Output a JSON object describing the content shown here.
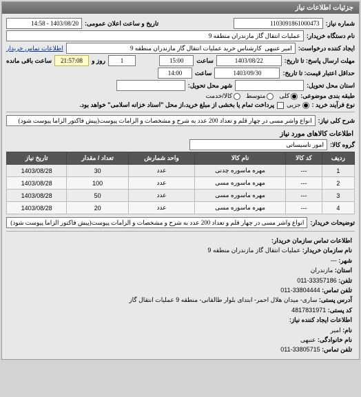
{
  "panel": {
    "title": "جزئیات اطلاعات نیاز"
  },
  "header": {
    "request_no_label": "شماره نیاز:",
    "request_no": "1103091861000473",
    "announce_label": "تاریخ و ساعت اعلان عمومی:",
    "announce_value": "1403/08/20 - 14:58",
    "buyer_label": "نام دستگاه خریدار:",
    "buyer": "عملیات انتقال گاز مازندران منطقه 9",
    "creator_label": "ایجاد کننده درخواست:",
    "creator": "امیر عنبهی  کارشناس خرید عملیات انتقال گاز مازندران منطقه 9",
    "contact_link": "اطلاعات تماس خریدار"
  },
  "deadlines": {
    "reply_to_label": "مهلت ارسال پاسخ: تا تاریخ:",
    "reply_date": "1403/08/22",
    "reply_time_label": "ساعت",
    "reply_time": "15:00",
    "days_label": "روز و",
    "days": "1",
    "remain_time": "21:57:08",
    "remain_label": "ساعت باقی مانده",
    "valid_to_label": "حداقل اعتبار قیمت: تا تاریخ:",
    "valid_date": "1403/09/30",
    "valid_time_label": "ساعت",
    "valid_time": "14:00"
  },
  "delivery": {
    "state_label": "استان محل تحویل:",
    "city_label": "شهر محل تحویل:"
  },
  "classification": {
    "label": "طبقه بندی موضوعی:",
    "opt_all": "کلی",
    "opt_partial": "جزیی",
    "opt_item": "کالا/خدمت",
    "opt_mid": "متوسط"
  },
  "process": {
    "label": "نوع فرآیند خرید :",
    "note": "پرداخت تمام یا بخشی از مبلغ خرید،از محل \"اسناد خزانه اسلامی\" خواهد بود."
  },
  "main": {
    "desc_label": "شرح کلی نیاز:",
    "desc": "انواع واشر مسی در چهار قلم و تعداد 200 عدد به شرح و مشخصات و الزامات پیوست(پیش فاکتور الزاما پیوست شود)",
    "items_title": "اطلاعات کالاهای مورد نیاز",
    "group_label": "گروه کالا:",
    "group": "امور تاسیساتی",
    "buyer_note_label": "توضیحات خریدار:",
    "buyer_note": "انواع واشر مسی در چهار قلم و تعداد 200 عدد به شرح و مشخصات و الزامات پیوست(پیش فاکتور الزاما پیوست شود)"
  },
  "table": {
    "columns": [
      "ردیف",
      "کد کالا",
      "نام کالا",
      "واحد شمارش",
      "تعداد / مقدار",
      "تاریخ نیاز"
    ],
    "rows": [
      [
        "1",
        "---",
        "مهره ماسوره چدنی",
        "عدد",
        "30",
        "1403/08/28"
      ],
      [
        "2",
        "---",
        "مهره ماسوره مسی",
        "عدد",
        "100",
        "1403/08/28"
      ],
      [
        "3",
        "---",
        "مهره ماسوره مسی",
        "عدد",
        "50",
        "1403/08/28"
      ],
      [
        "4",
        "---",
        "مهره ماسوره مسی",
        "عدد",
        "20",
        "1403/08/28"
      ]
    ]
  },
  "contact": {
    "org_title": "اطلاعات تماس سازمان خریدار:",
    "org_name_label": "نام سازمان خریدار:",
    "org_name": "عملیات انتقال گاز مازندران منطقه 9",
    "city_label": "شهر:",
    "city": "---",
    "province_label": "استان:",
    "province": "مازندران",
    "phone_label": "تلفن:",
    "phone": "33357186-011",
    "fax_label": "تلفن تماس:",
    "fax": "33804444-011",
    "addr_label": "آدرس پستی:",
    "addr": "ساری- میدان هلال احمر- ابتدای بلوار طالقانی- منطقه 9 عملیات انتقال گاز",
    "postcode_label": "کد پستی:",
    "postcode": "4817831971",
    "creator_title": "اطلاعات ایجاد کننده نیاز:",
    "fname_label": "نام:",
    "fname": "امیر",
    "lname_label": "نام خانوادگی:",
    "lname": "عنبهی",
    "cphone_label": "تلفن تماس:",
    "cphone": "33805715-011"
  }
}
